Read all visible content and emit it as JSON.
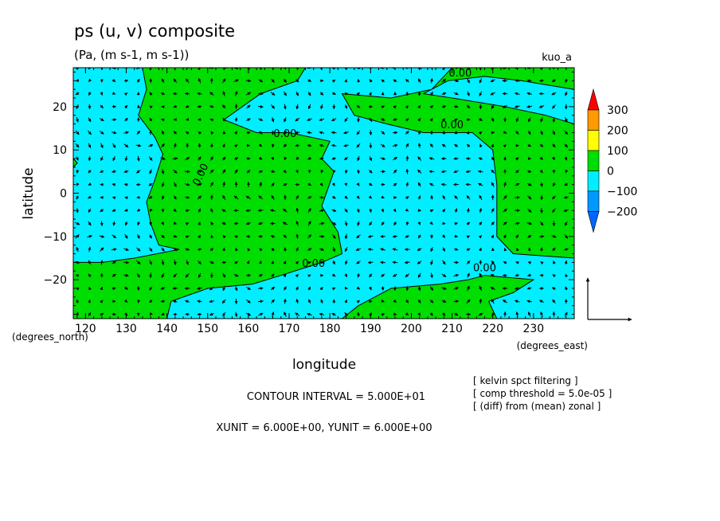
{
  "chart_data": {
    "type": "contour",
    "title": "ps (u, v) composite",
    "subtitle": "(Pa, (m s-1, m s-1))",
    "tag": "kuo_a",
    "xlabel": "longitude",
    "ylabel": "latitude",
    "xunit_label": "(degrees_east)",
    "yunit_label": "(degrees_north)",
    "xlim": [
      117,
      240
    ],
    "ylim": [
      -29,
      29
    ],
    "xticks": [
      120,
      130,
      140,
      150,
      160,
      170,
      180,
      190,
      200,
      210,
      220,
      230
    ],
    "yticks": [
      -20,
      -10,
      0,
      10,
      20
    ],
    "contour_label": "0.00",
    "colors": {
      "positive": "#00dd00",
      "negative": "#00eeff",
      "line": "#000000"
    },
    "legend": {
      "labels": [
        "300",
        "200",
        "100",
        "0",
        "−100",
        "−200"
      ],
      "colors": [
        "#ff0000",
        "#ff9900",
        "#ffff00",
        "#00dd00",
        "#00eeff",
        "#0099ff",
        "#0066ff"
      ]
    },
    "notes": {
      "contour_interval": "CONTOUR INTERVAL = 5.000E+01",
      "vector_units": "XUNIT = 6.000E+00, YUNIT = 6.000E+00",
      "settings": [
        "[ kelvin spct filtering ]",
        "[ comp threshold = 5.0e-05 ]",
        "[ (diff) from (mean) zonal ]"
      ]
    },
    "zero_contours": [
      [
        [
          134,
          29
        ],
        [
          135,
          24
        ],
        [
          133,
          18
        ],
        [
          137,
          13
        ],
        [
          139,
          9
        ],
        [
          137,
          3
        ],
        [
          135,
          -2
        ],
        [
          136,
          -7
        ],
        [
          138,
          -12
        ],
        [
          143,
          -13
        ],
        [
          132,
          -15
        ],
        [
          124,
          -16
        ],
        [
          117,
          -16
        ]
      ],
      [
        [
          140,
          -29
        ],
        [
          141,
          -25
        ],
        [
          150,
          -22
        ],
        [
          161,
          -21
        ],
        [
          168,
          -19
        ],
        [
          178,
          -16
        ],
        [
          183,
          -14
        ],
        [
          182,
          -9
        ],
        [
          178,
          -3
        ],
        [
          181,
          5
        ],
        [
          178,
          8
        ],
        [
          180,
          12
        ],
        [
          170,
          14
        ],
        [
          162,
          14
        ],
        [
          154,
          17
        ],
        [
          163,
          23
        ],
        [
          172,
          26
        ],
        [
          174,
          29
        ]
      ],
      [
        [
          183,
          -29
        ],
        [
          187,
          -26
        ],
        [
          195,
          -22
        ],
        [
          207,
          -21
        ],
        [
          214,
          -20
        ],
        [
          218,
          -19
        ],
        [
          230,
          -20
        ],
        [
          225,
          -23
        ],
        [
          219,
          -25
        ],
        [
          221,
          -29
        ]
      ],
      [
        [
          210,
          29
        ],
        [
          205,
          24
        ],
        [
          195,
          22
        ],
        [
          183,
          23
        ],
        [
          186,
          18
        ],
        [
          194,
          16
        ],
        [
          203,
          14
        ],
        [
          215,
          14
        ],
        [
          220,
          10
        ],
        [
          221,
          2
        ],
        [
          221,
          -10
        ],
        [
          225,
          -14
        ],
        [
          240,
          -15
        ]
      ],
      [
        [
          240,
          16
        ],
        [
          233,
          18
        ],
        [
          223,
          20
        ],
        [
          210,
          22
        ],
        [
          203,
          23
        ],
        [
          209,
          26
        ],
        [
          218,
          27
        ],
        [
          227,
          26
        ],
        [
          240,
          24
        ]
      ],
      [
        [
          117,
          8
        ],
        [
          118,
          7
        ],
        [
          117,
          6
        ]
      ]
    ],
    "cyan_regions": [
      [
        [
          117,
          29
        ],
        [
          134,
          29
        ],
        [
          135,
          24
        ],
        [
          133,
          18
        ],
        [
          137,
          13
        ],
        [
          139,
          9
        ],
        [
          137,
          3
        ],
        [
          135,
          -2
        ],
        [
          136,
          -7
        ],
        [
          138,
          -12
        ],
        [
          143,
          -13
        ],
        [
          132,
          -15
        ],
        [
          124,
          -16
        ],
        [
          117,
          -16
        ]
      ],
      [
        [
          174,
          29
        ],
        [
          172,
          26
        ],
        [
          163,
          23
        ],
        [
          154,
          17
        ],
        [
          162,
          14
        ],
        [
          170,
          14
        ],
        [
          180,
          12
        ],
        [
          178,
          8
        ],
        [
          181,
          5
        ],
        [
          178,
          -3
        ],
        [
          182,
          -9
        ],
        [
          183,
          -14
        ],
        [
          178,
          -16
        ],
        [
          168,
          -19
        ],
        [
          161,
          -21
        ],
        [
          150,
          -22
        ],
        [
          141,
          -25
        ],
        [
          140,
          -29
        ],
        [
          183,
          -29
        ],
        [
          187,
          -26
        ],
        [
          195,
          -22
        ],
        [
          207,
          -21
        ],
        [
          214,
          -20
        ],
        [
          218,
          -19
        ],
        [
          230,
          -20
        ],
        [
          225,
          -23
        ],
        [
          219,
          -25
        ],
        [
          221,
          -29
        ],
        [
          240,
          -29
        ],
        [
          240,
          -15
        ],
        [
          225,
          -14
        ],
        [
          221,
          -10
        ],
        [
          221,
          2
        ],
        [
          220,
          10
        ],
        [
          215,
          14
        ],
        [
          203,
          14
        ],
        [
          194,
          16
        ],
        [
          186,
          18
        ],
        [
          183,
          23
        ],
        [
          195,
          22
        ],
        [
          205,
          24
        ],
        [
          210,
          29
        ]
      ],
      [
        [
          240,
          16
        ],
        [
          233,
          18
        ],
        [
          223,
          20
        ],
        [
          210,
          22
        ],
        [
          203,
          23
        ],
        [
          209,
          26
        ],
        [
          218,
          27
        ],
        [
          227,
          26
        ],
        [
          240,
          24
        ]
      ]
    ],
    "green_patches": [
      [
        [
          117,
          8
        ],
        [
          118,
          7
        ],
        [
          117,
          6
        ]
      ]
    ],
    "contour_label_positions": [
      [
        169,
        13
      ],
      [
        149,
        4
      ],
      [
        210,
        15
      ],
      [
        212,
        27
      ],
      [
        176,
        -17
      ],
      [
        218,
        -18
      ]
    ],
    "vector_grid": {
      "lon_start": 118,
      "lon_step": 3,
      "lat_start": -28,
      "lat_step": 3
    }
  }
}
